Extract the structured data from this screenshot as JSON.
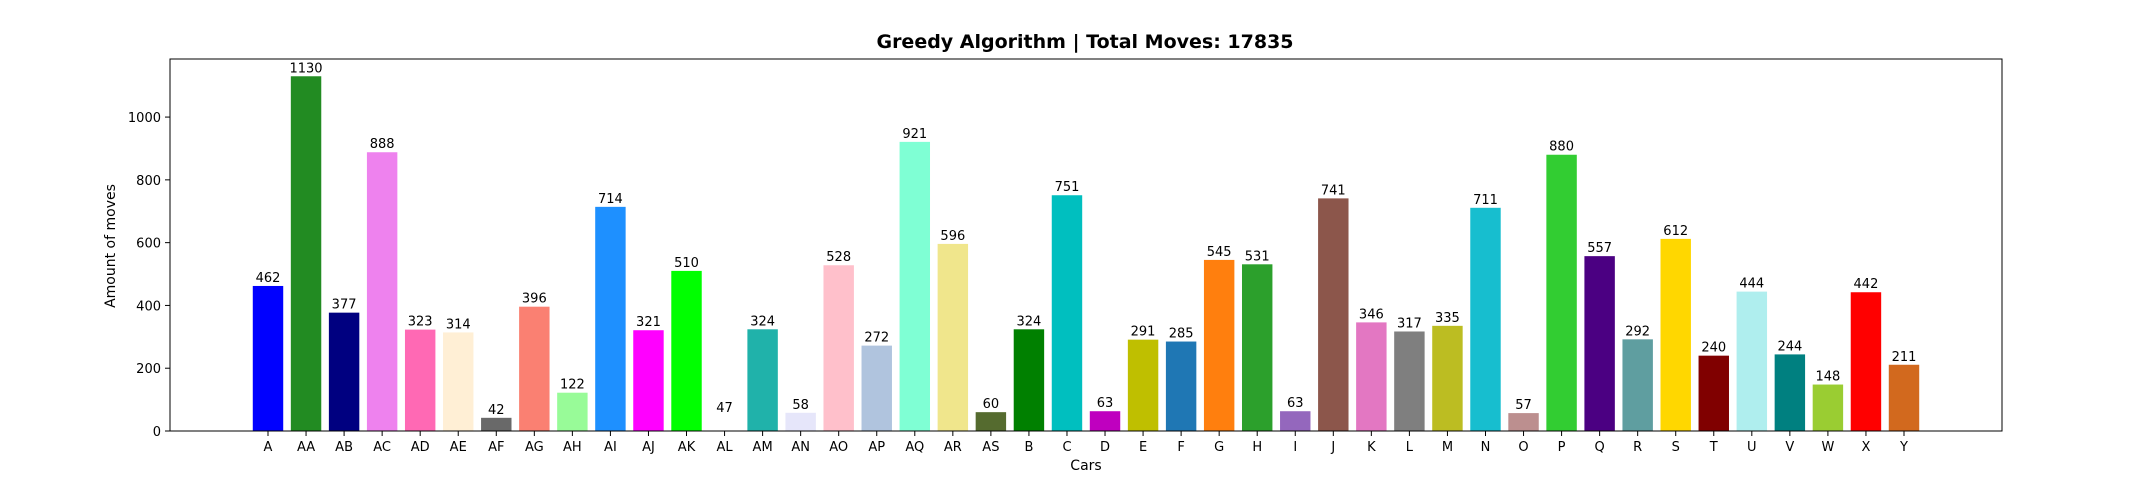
{
  "chart_data": {
    "type": "bar",
    "title": "Greedy Algorithm | Total Moves: 17835",
    "xlabel": "Cars",
    "ylabel": "Amount of moves",
    "ylim": [
      0,
      1185
    ],
    "yticks": [
      0,
      200,
      400,
      600,
      800,
      1000
    ],
    "grid": false,
    "categories": [
      "A",
      "AA",
      "AB",
      "AC",
      "AD",
      "AE",
      "AF",
      "AG",
      "AH",
      "AI",
      "AJ",
      "AK",
      "AL",
      "AM",
      "AN",
      "AO",
      "AP",
      "AQ",
      "AR",
      "AS",
      "B",
      "C",
      "D",
      "E",
      "F",
      "G",
      "H",
      "I",
      "J",
      "K",
      "L",
      "M",
      "N",
      "O",
      "P",
      "Q",
      "R",
      "S",
      "T",
      "U",
      "V",
      "W",
      "X",
      "Y"
    ],
    "values": [
      462,
      1130,
      377,
      888,
      323,
      314,
      42,
      396,
      122,
      714,
      321,
      510,
      47,
      324,
      58,
      528,
      272,
      921,
      596,
      60,
      324,
      751,
      63,
      291,
      285,
      545,
      531,
      63,
      741,
      346,
      317,
      335,
      711,
      57,
      880,
      557,
      292,
      612,
      240,
      444,
      244,
      148,
      442,
      211
    ],
    "colors": [
      "#0000ff",
      "#228b22",
      "#000080",
      "#ee82ee",
      "#ff69b4",
      "#ffefd5",
      "#696969",
      "#fa8072",
      "#98fb98",
      "#1e90ff",
      "#ff00ff",
      "#00ff00",
      "#ffffff",
      "#20b2aa",
      "#e6e6fa",
      "#ffc0cb",
      "#b0c4de",
      "#7fffd4",
      "#f0e68c",
      "#556b2f",
      "#008000",
      "#00bfbf",
      "#bf00bf",
      "#bfbf00",
      "#1f77b4",
      "#ff7f0e",
      "#2ca02c",
      "#9467bd",
      "#8c564b",
      "#e377c2",
      "#7f7f7f",
      "#bcbd22",
      "#17becf",
      "#bc8f8f",
      "#32cd32",
      "#4b0082",
      "#5f9ea0",
      "#ffd700",
      "#800000",
      "#afeeee",
      "#008080",
      "#9acd32",
      "#ff0000",
      "#d2691e"
    ]
  }
}
